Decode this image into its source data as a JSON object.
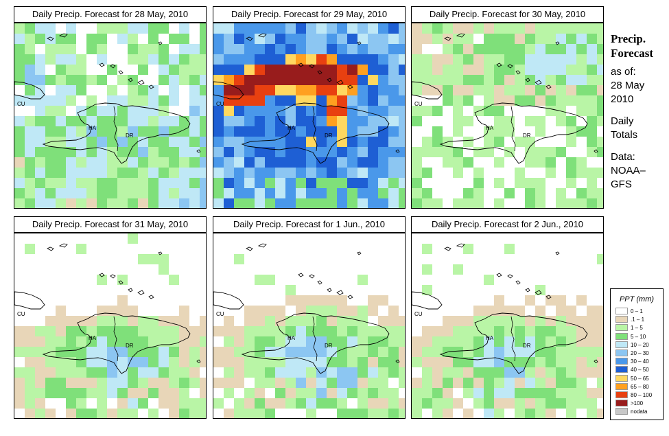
{
  "panels": [
    {
      "title": "Daily Precip. Forecast for  28 May, 2010",
      "day": 0
    },
    {
      "title": "Daily Precip. Forecast for  29 May, 2010",
      "day": 1
    },
    {
      "title": "Daily Precip. Forecast for  30 May, 2010",
      "day": 2
    },
    {
      "title": "Daily Precip. Forecast for  31 May, 2010",
      "day": 3
    },
    {
      "title": "Daily Precip. Forecast for  1 Jun., 2010",
      "day": 4
    },
    {
      "title": "Daily Precip. Forecast for  2 Jun., 2010",
      "day": 5
    }
  ],
  "map_labels": {
    "cu": "CU",
    "ha": "HA",
    "dr": "DR"
  },
  "sidebar": {
    "title_line1": "Precip.",
    "title_line2": "Forecast",
    "asof_label": "as of:",
    "date_line1": "28 May",
    "date_line2": "2010",
    "totals_line1": "Daily",
    "totals_line2": "Totals",
    "data_label": "Data:",
    "source_line1": "NOAA–",
    "source_line2": "GFS"
  },
  "legend": {
    "title": "PPT (mm)",
    "items": [
      {
        "label": "0 – 1",
        "color": "#ffffff"
      },
      {
        "label": ".1 – 1",
        "color": "#e8d6b8"
      },
      {
        "label": "1 – 5",
        "color": "#b9f5a6"
      },
      {
        "label": "5 – 10",
        "color": "#7fe07a"
      },
      {
        "label": "10 – 20",
        "color": "#bfe8f6"
      },
      {
        "label": "20 – 30",
        "color": "#8cc6f2"
      },
      {
        "label": "30 – 40",
        "color": "#4a98ea"
      },
      {
        "label": "40 – 50",
        "color": "#1e5fd4"
      },
      {
        "label": "50 – 65",
        "color": "#ffd860"
      },
      {
        "label": "65 – 80",
        "color": "#ffa020"
      },
      {
        "label": "80 – 100",
        "color": "#e84010"
      },
      {
        "label": ">100",
        "color": "#981c1c"
      },
      {
        "label": "nodata",
        "color": "#c8c8c8"
      }
    ]
  }
}
